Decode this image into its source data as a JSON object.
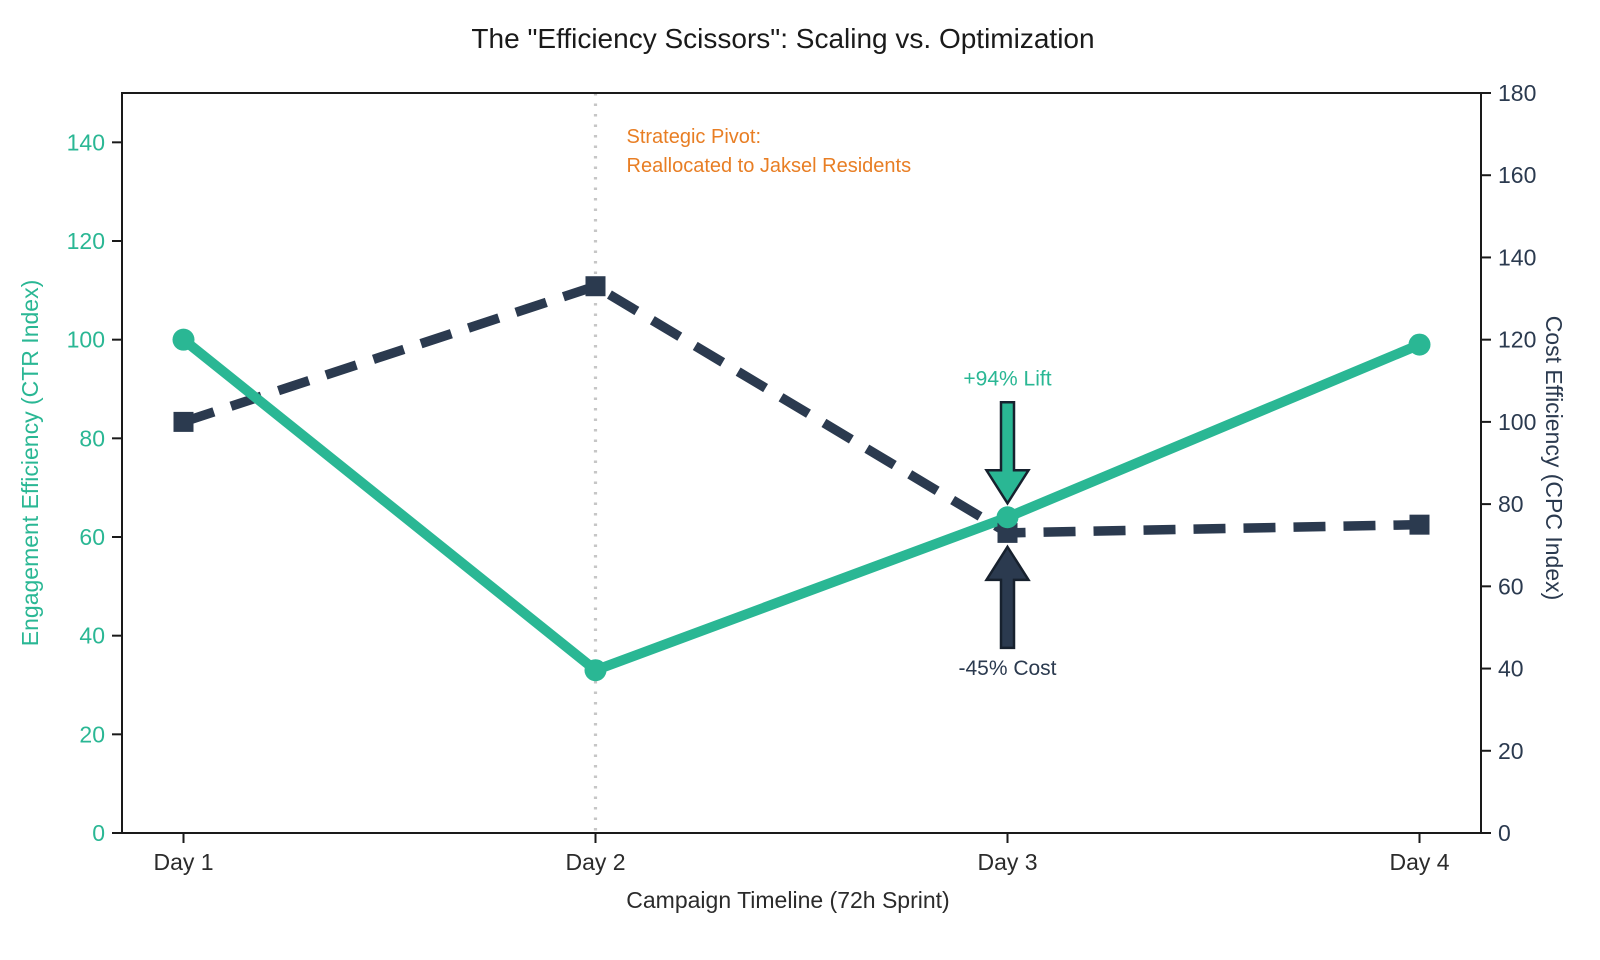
{
  "title": "The \"Efficiency Scissors\": Scaling vs. Optimization",
  "chart_data": {
    "type": "line",
    "categories": [
      "Day 1",
      "Day 2",
      "Day 3",
      "Day 4"
    ],
    "series": [
      {
        "name": "Engagement Efficiency (CTR Index)",
        "axis": "left",
        "values": [
          100,
          33,
          64,
          99
        ],
        "color": "#2AB794",
        "style": "solid",
        "marker": "circle"
      },
      {
        "name": "Cost Efficiency (CPC Index)",
        "axis": "right",
        "values": [
          100,
          133,
          73,
          75
        ],
        "color": "#2B3A4F",
        "style": "dashed",
        "marker": "square"
      }
    ],
    "xlabel": "Campaign Timeline (72h Sprint)",
    "ylabel_left": "Engagement Efficiency (CTR Index)",
    "ylabel_right": "Cost Efficiency (CPC Index)",
    "ylim_left": [
      0,
      150
    ],
    "ylim_right": [
      0,
      180
    ],
    "yticks_left": [
      0,
      20,
      40,
      60,
      80,
      100,
      120,
      140
    ],
    "yticks_right": [
      0,
      20,
      40,
      60,
      80,
      100,
      120,
      140,
      160,
      180
    ],
    "grid": false,
    "legend": "none",
    "annotations": {
      "pivot_line": {
        "x_category": "Day 2",
        "style": "dotted",
        "color": "#C6C6C6"
      },
      "pivot_label": {
        "line1": "Strategic Pivot:",
        "line2": "Reallocated to Jaksel Residents",
        "color": "#E87E24"
      },
      "lift": {
        "text": "+94% Lift",
        "color": "#2AB794",
        "arrow": "down",
        "at_category": "Day 3",
        "at_value": 64
      },
      "cost": {
        "text": "-45% Cost",
        "color": "#2B3A4F",
        "arrow": "up",
        "at_category": "Day 3",
        "at_value": 73
      }
    },
    "colors": {
      "spine": "#1A1A1A",
      "x_tick_label": "#2B2B2B",
      "title": "#1A1A1A",
      "arrow_outline": "#17212E"
    }
  }
}
